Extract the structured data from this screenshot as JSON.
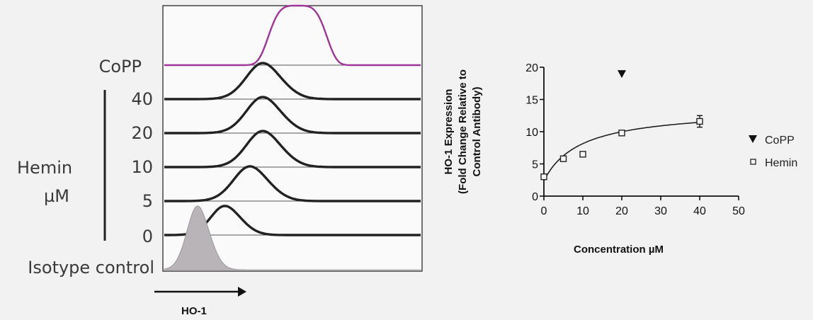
{
  "chart_data": [
    {
      "type": "line",
      "title": "",
      "xlabel": "HO-1",
      "ylabel": "",
      "row_labels": [
        "CoPP",
        "40",
        "20",
        "10",
        "5",
        "0",
        "Isotype control"
      ],
      "group_label_line1": "Hemin",
      "group_label_line2": "µM",
      "series": [
        {
          "name": "CoPP",
          "peak": 0.52,
          "width": 0.095,
          "shape": "flat",
          "color": "#a0349a"
        },
        {
          "name": "40",
          "peak": 0.4,
          "width": 0.07,
          "shape": "peak",
          "color": "#222222"
        },
        {
          "name": "20",
          "peak": 0.4,
          "width": 0.07,
          "shape": "peak",
          "color": "#222222"
        },
        {
          "name": "10",
          "peak": 0.4,
          "width": 0.07,
          "shape": "peak",
          "color": "#222222"
        },
        {
          "name": "5",
          "peak": 0.35,
          "width": 0.07,
          "shape": "peak",
          "color": "#222222"
        },
        {
          "name": "0",
          "peak": 0.25,
          "width": 0.06,
          "shape": "peak",
          "color": "#222222"
        },
        {
          "name": "Isotype control",
          "peak": 0.14,
          "width": 0.045,
          "shape": "filled",
          "color": "#b8b4b8"
        }
      ]
    },
    {
      "type": "scatter",
      "title": "",
      "xlabel": "Concentration µM",
      "ylabel_lines": [
        "HO-1 Expression",
        "(Fold Change Relative to",
        "Control Antibody)"
      ],
      "xlim": [
        0,
        50
      ],
      "ylim": [
        0,
        20
      ],
      "xticks": [
        "0",
        "10",
        "20",
        "30",
        "40",
        "50"
      ],
      "yticks": [
        "0",
        "5",
        "10",
        "15",
        "20"
      ],
      "series": [
        {
          "name": "CoPP",
          "marker": "triangle-down",
          "x": [
            20
          ],
          "y": [
            19
          ]
        },
        {
          "name": "Hemin",
          "marker": "open-square",
          "x": [
            0,
            5,
            10,
            20,
            40
          ],
          "y": [
            3,
            5.8,
            6.5,
            9.8,
            11.6
          ],
          "yerr": [
            0,
            0,
            0,
            0,
            0.9
          ]
        }
      ],
      "fit_curve": {
        "ymax": 13.6,
        "half": 9.5
      }
    }
  ]
}
